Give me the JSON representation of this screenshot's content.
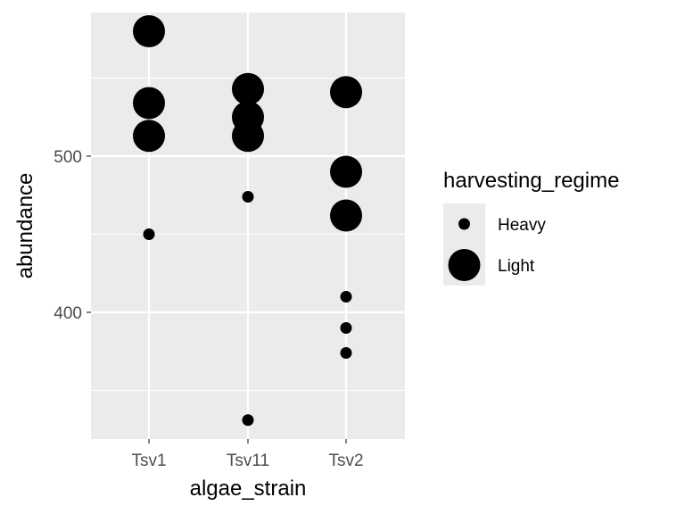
{
  "chart_data": {
    "type": "scatter",
    "xlabel": "algae_strain",
    "ylabel": "abundance",
    "categories": [
      "Tsv1",
      "Tsv11",
      "Tsv2"
    ],
    "y_ticks": [
      400,
      500
    ],
    "ylim": [
      319,
      600
    ],
    "grid": true,
    "legend": {
      "title": "harvesting_regime",
      "placement": "right",
      "entries": [
        "Heavy",
        "Light"
      ]
    },
    "series": [
      {
        "name": "Heavy",
        "points": [
          {
            "x": "Tsv1",
            "y": 450
          },
          {
            "x": "Tsv11",
            "y": 474
          },
          {
            "x": "Tsv11",
            "y": 331
          },
          {
            "x": "Tsv2",
            "y": 410
          },
          {
            "x": "Tsv2",
            "y": 390
          },
          {
            "x": "Tsv2",
            "y": 374
          }
        ]
      },
      {
        "name": "Light",
        "points": [
          {
            "x": "Tsv1",
            "y": 580
          },
          {
            "x": "Tsv1",
            "y": 534
          },
          {
            "x": "Tsv1",
            "y": 513
          },
          {
            "x": "Tsv11",
            "y": 543
          },
          {
            "x": "Tsv11",
            "y": 525
          },
          {
            "x": "Tsv11",
            "y": 513
          },
          {
            "x": "Tsv2",
            "y": 541
          },
          {
            "x": "Tsv2",
            "y": 490
          },
          {
            "x": "Tsv2",
            "y": 462
          }
        ]
      }
    ],
    "colors": {
      "panel": "#ebebeb",
      "grid": "#ffffff",
      "point": "#000000",
      "tick_text": "#4d4d4d"
    }
  }
}
